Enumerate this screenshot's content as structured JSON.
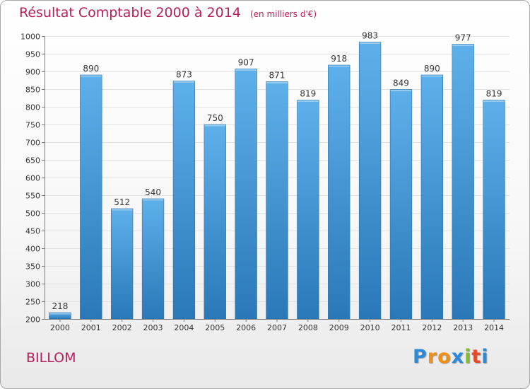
{
  "title": "Résultat Comptable 2000 à 2014",
  "subtitle": "(en milliers d'€)",
  "commune": "BILLOM",
  "brand": {
    "letters": [
      "P",
      "r",
      "o",
      "x",
      "i",
      "t",
      "i"
    ],
    "colors": [
      "#2e89d6",
      "#f29015",
      "#f29015",
      "#2e89d6",
      "#7fbf2a",
      "#e34a27",
      "#2e89d6"
    ]
  },
  "colors": {
    "accent": "#b51f5c",
    "bar_top": "#5eb0ea",
    "bar_bottom": "#2a78b8",
    "grid": "#e2e2e2",
    "axis": "#7f7f7f",
    "text": "#333333"
  },
  "chart_data": {
    "type": "bar",
    "title": "Résultat Comptable 2000 à 2014",
    "subtitle": "(en milliers d'€)",
    "categories": [
      "2000",
      "2001",
      "2002",
      "2003",
      "2004",
      "2005",
      "2006",
      "2007",
      "2008",
      "2009",
      "2010",
      "2011",
      "2012",
      "2013",
      "2014"
    ],
    "values": [
      218,
      890,
      512,
      540,
      873,
      750,
      907,
      871,
      819,
      918,
      983,
      849,
      890,
      977,
      819
    ],
    "ylim": [
      200,
      1000
    ],
    "yticks": [
      200,
      250,
      300,
      350,
      400,
      450,
      500,
      550,
      600,
      650,
      700,
      750,
      800,
      850,
      900,
      950,
      1000
    ],
    "xlabel": "",
    "ylabel": "",
    "grid": true,
    "legend": "none"
  }
}
